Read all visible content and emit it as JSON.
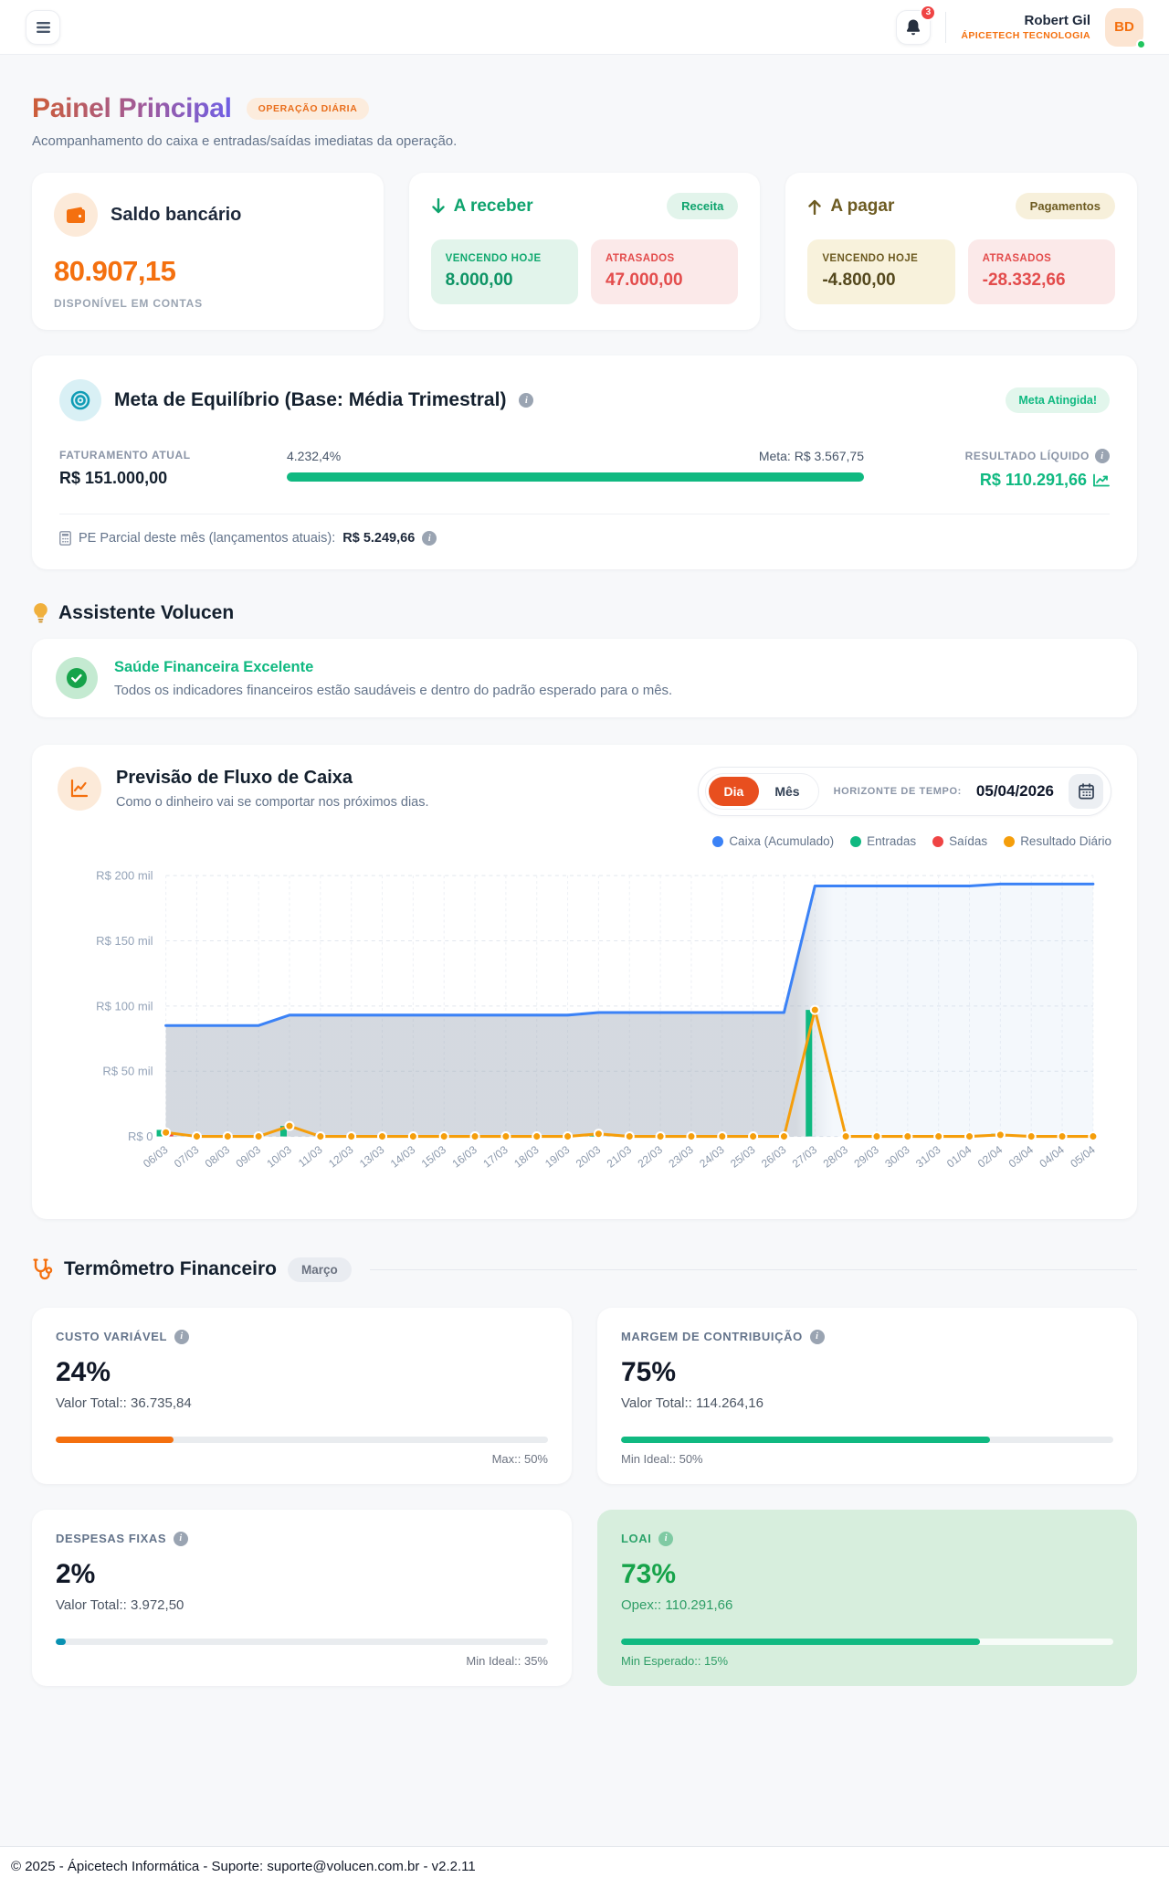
{
  "header": {
    "notification_count": "3",
    "user_name": "Robert Gil",
    "user_company": "ÁPICETECH TECNOLOGIA",
    "avatar_initials": "BD"
  },
  "page": {
    "title": "Painel Principal",
    "badge": "OPERAÇÃO DIÁRIA",
    "subtitle": "Acompanhamento do caixa e entradas/saídas imediatas da operação."
  },
  "cards": {
    "saldo": {
      "title": "Saldo bancário",
      "value": "80.907,15",
      "caption": "DISPONÍVEL EM CONTAS"
    },
    "receber": {
      "title": "A receber",
      "badge": "Receita",
      "boxes": [
        {
          "label": "VENCENDO HOJE",
          "value": "8.000,00"
        },
        {
          "label": "ATRASADOS",
          "value": "47.000,00"
        }
      ]
    },
    "pagar": {
      "title": "A pagar",
      "badge": "Pagamentos",
      "boxes": [
        {
          "label": "VENCENDO HOJE",
          "value": "-4.800,00"
        },
        {
          "label": "ATRASADOS",
          "value": "-28.332,66"
        }
      ]
    }
  },
  "meta": {
    "title": "Meta de Equilíbrio (Base: Média Trimestral)",
    "badge": "Meta Atingida!",
    "faturamento_label": "FATURAMENTO ATUAL",
    "faturamento_value": "R$ 151.000,00",
    "progress_pct": "4.232,4%",
    "meta_label": "Meta: R$ 3.567,75",
    "resultado_label": "RESULTADO LÍQUIDO",
    "resultado_value": "R$ 110.291,66",
    "pe_label": "PE Parcial deste mês (lançamentos atuais):",
    "pe_value": "R$ 5.249,66"
  },
  "assistente": {
    "heading": "Assistente Volucen",
    "status_title": "Saúde Financeira Excelente",
    "status_text": "Todos os indicadores financeiros estão saudáveis e dentro do padrão esperado para o mês."
  },
  "fluxo": {
    "title": "Previsão de Fluxo de Caixa",
    "subtitle": "Como o dinheiro vai se comportar nos próximos dias.",
    "toggle_day": "Dia",
    "toggle_month": "Mês",
    "horizon_label": "HORIZONTE DE TEMPO:",
    "horizon_date": "05/04/2026",
    "legend": [
      {
        "label": "Caixa (Acumulado)",
        "color": "#3b82f6"
      },
      {
        "label": "Entradas",
        "color": "#10b981"
      },
      {
        "label": "Saídas",
        "color": "#ef4444"
      },
      {
        "label": "Resultado Diário",
        "color": "#f59e0b"
      }
    ]
  },
  "chart_data": {
    "type": "line",
    "title": "Previsão de Fluxo de Caixa",
    "x": [
      "06/03",
      "07/03",
      "08/03",
      "09/03",
      "10/03",
      "11/03",
      "12/03",
      "13/03",
      "14/03",
      "15/03",
      "16/03",
      "17/03",
      "18/03",
      "19/03",
      "20/03",
      "21/03",
      "22/03",
      "23/03",
      "24/03",
      "25/03",
      "26/03",
      "27/03",
      "28/03",
      "29/03",
      "30/03",
      "31/03",
      "01/04",
      "02/04",
      "03/04",
      "04/04",
      "05/04"
    ],
    "ylim": [
      0,
      200000
    ],
    "yticks": [
      {
        "v": 0,
        "label": "R$ 0"
      },
      {
        "v": 50000,
        "label": "R$ 50 mil"
      },
      {
        "v": 100000,
        "label": "R$ 100 mil"
      },
      {
        "v": 150000,
        "label": "R$ 150 mil"
      },
      {
        "v": 200000,
        "label": "R$ 200 mil"
      }
    ],
    "grid": true,
    "legend_position": "top-right",
    "series": [
      {
        "name": "Caixa (Acumulado)",
        "kind": "line-area",
        "color": "#3b82f6",
        "values": [
          85000,
          85000,
          85000,
          85000,
          93000,
          93000,
          93000,
          93000,
          93000,
          93000,
          93000,
          93000,
          93000,
          93000,
          95000,
          95000,
          95000,
          95000,
          95000,
          95000,
          95000,
          192000,
          192000,
          192000,
          192000,
          192000,
          192000,
          193500,
          193500,
          193500,
          193500
        ]
      },
      {
        "name": "Entradas",
        "kind": "bar",
        "color": "#10b981",
        "values": [
          5000,
          0,
          0,
          0,
          8000,
          0,
          0,
          0,
          0,
          0,
          0,
          0,
          0,
          0,
          2000,
          0,
          0,
          0,
          0,
          0,
          0,
          97000,
          0,
          0,
          0,
          0,
          0,
          2000,
          0,
          0,
          0
        ]
      },
      {
        "name": "Saídas",
        "kind": "bar",
        "color": "#ef4444",
        "values": [
          2000,
          0,
          0,
          0,
          0,
          0,
          0,
          0,
          0,
          0,
          0,
          0,
          0,
          0,
          0,
          0,
          0,
          0,
          0,
          0,
          0,
          0,
          0,
          0,
          0,
          0,
          0,
          800,
          0,
          0,
          0
        ]
      },
      {
        "name": "Resultado Diário",
        "kind": "line-dots",
        "color": "#f59e0b",
        "values": [
          3000,
          0,
          0,
          0,
          8000,
          0,
          0,
          0,
          0,
          0,
          0,
          0,
          0,
          0,
          2000,
          0,
          0,
          0,
          0,
          0,
          0,
          97000,
          0,
          0,
          0,
          0,
          0,
          1200,
          0,
          0,
          0
        ]
      }
    ]
  },
  "termometro": {
    "heading": "Termômetro Financeiro",
    "badge": "Março",
    "cards": [
      {
        "label": "CUSTO VARIÁVEL",
        "value": "24%",
        "sub": "Valor Total:: 36.735,84",
        "bar_pct": 24,
        "bar_color": "#f4700f",
        "footnote": "Max:: 50%"
      },
      {
        "label": "MARGEM DE CONTRIBUIÇÃO",
        "value": "75%",
        "sub": "Valor Total:: 114.264,16",
        "bar_pct": 75,
        "bar_color": "#10b981",
        "footnote": "Min Ideal:: 50%"
      },
      {
        "label": "DESPESAS FIXAS",
        "value": "2%",
        "sub": "Valor Total:: 3.972,50",
        "bar_pct": 2,
        "bar_color": "#0891b2",
        "footnote": "Min Ideal:: 35%"
      },
      {
        "label": "LOAI",
        "value": "73%",
        "sub": "Opex:: 110.291,66",
        "bar_pct": 73,
        "bar_color": "#10b981",
        "footnote": "Min Esperado:: 15%"
      }
    ]
  },
  "footer": {
    "text": "© 2025 - Ápicetech Informática - Suporte: suporte@volucen.com.br - v2.2.11"
  }
}
